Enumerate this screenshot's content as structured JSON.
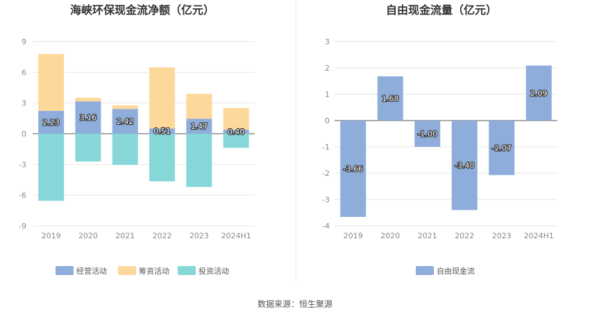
{
  "source": "数据来源：恒生聚源",
  "colors": {
    "operating": "#8eaddb",
    "financing": "#fdd89b",
    "investing": "#88d7d8",
    "fcf": "#8eaddb",
    "grid": "#e6e6e6",
    "zero": "#555555",
    "label_halo": "#333333"
  },
  "chart_data": [
    {
      "type": "bar",
      "stacked": true,
      "title": "海峡环保现金流净额（亿元）",
      "categories": [
        "2019",
        "2020",
        "2021",
        "2022",
        "2023",
        "2024H1"
      ],
      "ylim": [
        -9,
        9
      ],
      "yticks": [
        "9",
        "6",
        "3",
        "0",
        "-3",
        "-6",
        "-9"
      ],
      "grid": true,
      "legend": "bottom",
      "series": [
        {
          "name": "经营活动",
          "values": [
            2.23,
            3.16,
            2.42,
            0.51,
            1.47,
            0.4
          ],
          "labels": [
            "2.23",
            "3.16",
            "2.42",
            "0.51",
            "1.47",
            "0.40"
          ],
          "color_key": "operating"
        },
        {
          "name": "筹资活动",
          "values": [
            5.55,
            0.35,
            0.35,
            5.97,
            2.43,
            2.12
          ],
          "color_key": "financing"
        },
        {
          "name": "投资活动",
          "values": [
            -6.55,
            -2.72,
            -3.05,
            -4.65,
            -5.2,
            -1.38
          ],
          "color_key": "investing"
        }
      ]
    },
    {
      "type": "bar",
      "title": "自由现金流量（亿元）",
      "categories": [
        "2019",
        "2020",
        "2021",
        "2022",
        "2023",
        "2024H1"
      ],
      "ylim": [
        -4,
        3
      ],
      "yticks": [
        "3",
        "2",
        "1",
        "0",
        "-1",
        "-2",
        "-3",
        "-4"
      ],
      "grid": true,
      "legend": "bottom",
      "series": [
        {
          "name": "自由现金流",
          "values": [
            -3.66,
            1.68,
            -1.0,
            -3.4,
            -2.07,
            2.09
          ],
          "labels": [
            "-3.66",
            "1.68",
            "-1.00",
            "-3.40",
            "-2.07",
            "2.09"
          ],
          "color_key": "fcf"
        }
      ]
    }
  ]
}
